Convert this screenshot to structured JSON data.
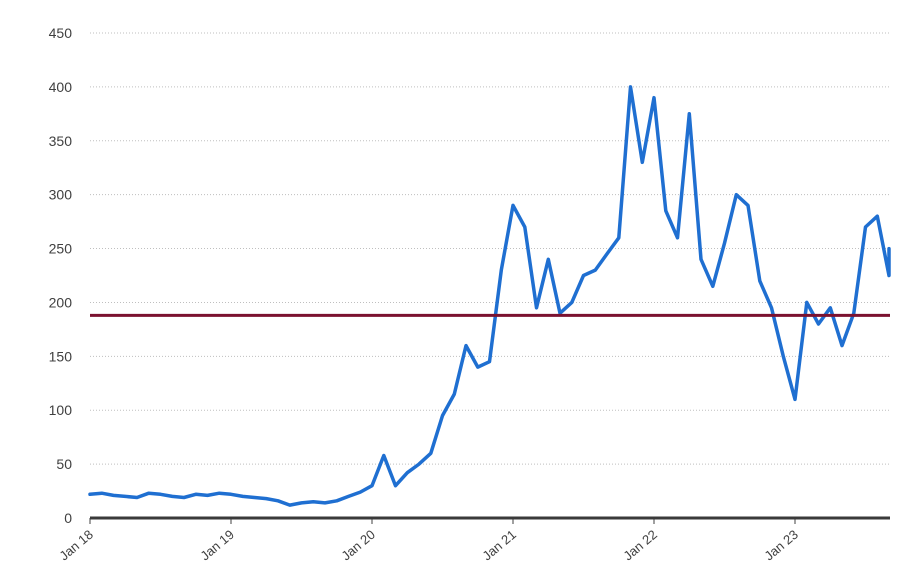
{
  "chart_data": {
    "type": "line",
    "title": "",
    "xlabel": "",
    "ylabel": "",
    "ylim": [
      0,
      450
    ],
    "yticks": [
      0,
      50,
      100,
      150,
      200,
      250,
      300,
      350,
      400,
      450
    ],
    "ytick_labels": [
      "0",
      "50",
      "100",
      "150",
      "200",
      "250",
      "300",
      "350",
      "400",
      "450"
    ],
    "xlim": [
      "2018-01",
      "2023-09"
    ],
    "xticks": [
      "2018-01",
      "2019-01",
      "2020-01",
      "2021-01",
      "2022-01",
      "2023-01"
    ],
    "xtick_labels": [
      "Jan 18",
      "Jan 19",
      "Jan 20",
      "Jan 21",
      "Jan 22",
      "Jan 23"
    ],
    "grid": "horizontal dotted",
    "legend": "none",
    "reference_line": {
      "value": 188,
      "color": "#7b1230"
    },
    "series": [
      {
        "color": "#1f6fd1",
        "points": [
          [
            "2018-01",
            22
          ],
          [
            "2018-02",
            23
          ],
          [
            "2018-03",
            21
          ],
          [
            "2018-04",
            20
          ],
          [
            "2018-05",
            19
          ],
          [
            "2018-06",
            23
          ],
          [
            "2018-07",
            22
          ],
          [
            "2018-08",
            20
          ],
          [
            "2018-09",
            19
          ],
          [
            "2018-10",
            22
          ],
          [
            "2018-11",
            21
          ],
          [
            "2018-12",
            23
          ],
          [
            "2019-01",
            22
          ],
          [
            "2019-02",
            20
          ],
          [
            "2019-03",
            19
          ],
          [
            "2019-04",
            18
          ],
          [
            "2019-05",
            16
          ],
          [
            "2019-06",
            12
          ],
          [
            "2019-07",
            14
          ],
          [
            "2019-08",
            15
          ],
          [
            "2019-09",
            14
          ],
          [
            "2019-10",
            16
          ],
          [
            "2019-11",
            20
          ],
          [
            "2019-12",
            24
          ],
          [
            "2020-01",
            30
          ],
          [
            "2020-02",
            58
          ],
          [
            "2020-03",
            30
          ],
          [
            "2020-04",
            42
          ],
          [
            "2020-05",
            50
          ],
          [
            "2020-06",
            60
          ],
          [
            "2020-07",
            95
          ],
          [
            "2020-08",
            115
          ],
          [
            "2020-09",
            160
          ],
          [
            "2020-10",
            140
          ],
          [
            "2020-11",
            145
          ],
          [
            "2020-12",
            230
          ],
          [
            "2021-01",
            290
          ],
          [
            "2021-02",
            270
          ],
          [
            "2021-03",
            195
          ],
          [
            "2021-04",
            240
          ],
          [
            "2021-05",
            190
          ],
          [
            "2021-06",
            200
          ],
          [
            "2021-07",
            225
          ],
          [
            "2021-08",
            230
          ],
          [
            "2021-09",
            245
          ],
          [
            "2021-10",
            260
          ],
          [
            "2021-11",
            400
          ],
          [
            "2021-12",
            330
          ],
          [
            "2022-01",
            390
          ],
          [
            "2022-02",
            285
          ],
          [
            "2022-03",
            260
          ],
          [
            "2022-04",
            375
          ],
          [
            "2022-05",
            240
          ],
          [
            "2022-06",
            215
          ],
          [
            "2022-07",
            255
          ],
          [
            "2022-08",
            300
          ],
          [
            "2022-09",
            290
          ],
          [
            "2022-10",
            220
          ],
          [
            "2022-11",
            195
          ],
          [
            "2022-12",
            150
          ],
          [
            "2023-01",
            110
          ],
          [
            "2023-02",
            200
          ],
          [
            "2023-03",
            180
          ],
          [
            "2023-04",
            195
          ],
          [
            "2023-05",
            160
          ],
          [
            "2023-06",
            190
          ],
          [
            "2023-07",
            270
          ],
          [
            "2023-08",
            280
          ],
          [
            "2023-09",
            225
          ],
          [
            "2023-09",
            250
          ]
        ]
      }
    ]
  }
}
